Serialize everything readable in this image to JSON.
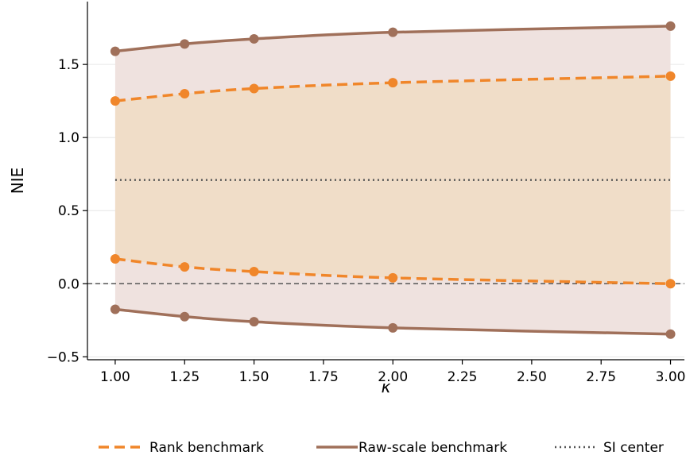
{
  "chart_data": {
    "type": "line",
    "title": "",
    "xlabel": "κ",
    "ylabel": "NIE",
    "xlim": [
      0.9,
      3.05
    ],
    "ylim": [
      -0.52,
      1.93
    ],
    "x_ticks": [
      1.0,
      1.25,
      1.5,
      1.75,
      2.0,
      2.25,
      2.5,
      2.75,
      3.0
    ],
    "x_tick_labels": [
      "1.00",
      "1.25",
      "1.50",
      "1.75",
      "2.00",
      "2.25",
      "2.50",
      "2.75",
      "3.00"
    ],
    "y_ticks": [
      -0.5,
      0.0,
      0.5,
      1.0,
      1.5
    ],
    "y_tick_labels": [
      "−0.5",
      "0.0",
      "0.5",
      "1.0",
      "1.5"
    ],
    "grid": "horizontal",
    "x": [
      1.0,
      1.25,
      1.5,
      2.0,
      3.0
    ],
    "series": [
      {
        "name": "Rank benchmark",
        "bound": "upper",
        "color": "#f0862a",
        "style": "dashed",
        "values": [
          1.25,
          1.3,
          1.335,
          1.375,
          1.42
        ]
      },
      {
        "bound": "lower",
        "color": "#f0862a",
        "style": "dashed",
        "values": [
          0.17,
          0.115,
          0.083,
          0.04,
          0.0
        ]
      },
      {
        "name": "Raw-scale benchmark",
        "bound": "upper",
        "color": "#a0705a",
        "style": "solid",
        "values": [
          1.59,
          1.64,
          1.675,
          1.72,
          1.762
        ]
      },
      {
        "bound": "lower",
        "color": "#a0705a",
        "style": "solid",
        "values": [
          -0.175,
          -0.225,
          -0.26,
          -0.302,
          -0.345
        ]
      }
    ],
    "reference_lines": [
      {
        "name": "SI center",
        "y": 0.71,
        "color": "#555555",
        "style": "dotted"
      },
      {
        "y": 0.0,
        "color": "#555555",
        "style": "dashed"
      }
    ],
    "fills": [
      {
        "between": "Raw-scale benchmark",
        "color": "#efe2df"
      },
      {
        "between": "Rank benchmark",
        "color": "#f0ddc8"
      }
    ],
    "legend": {
      "position": "bottom",
      "entries": [
        "Rank benchmark",
        "Raw-scale benchmark",
        "SI center"
      ]
    }
  }
}
